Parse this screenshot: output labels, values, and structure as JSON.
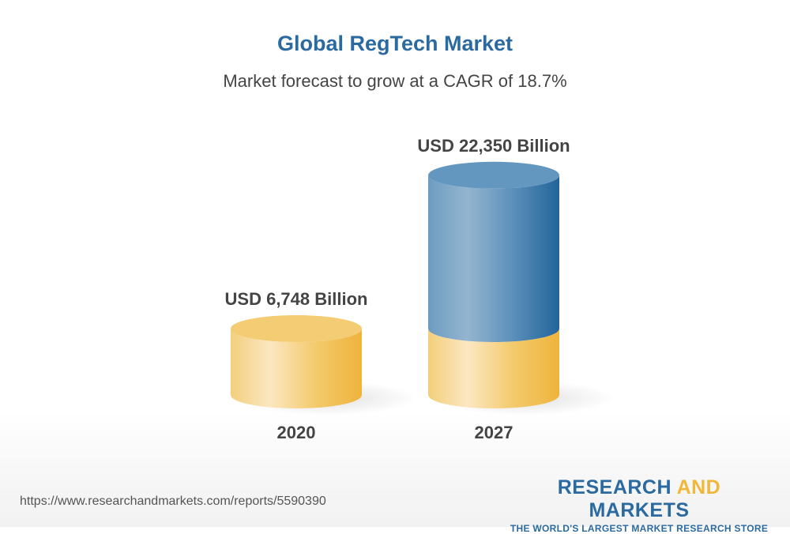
{
  "chart_data": {
    "type": "bar",
    "style": "3d-cylinder",
    "title": "Global RegTech Market",
    "subtitle": "Market forecast to grow at a CAGR of 18.7%",
    "categories": [
      "2020",
      "2027"
    ],
    "values": [
      6748,
      22350
    ],
    "data_labels": [
      "USD 6,748 Billion",
      "USD 22,350 Billion"
    ],
    "unit": "USD Billion",
    "colors": {
      "base": "#f2c55c",
      "growth": "#2a6aa0"
    },
    "grid": false,
    "legend": "none"
  },
  "footer": {
    "url": "https://www.researchandmarkets.com/reports/5590390",
    "logo_part1": "RESEARCH ",
    "logo_part2": "AND",
    "logo_part3": " MARKETS",
    "tagline": "THE WORLD'S LARGEST MARKET RESEARCH STORE"
  }
}
